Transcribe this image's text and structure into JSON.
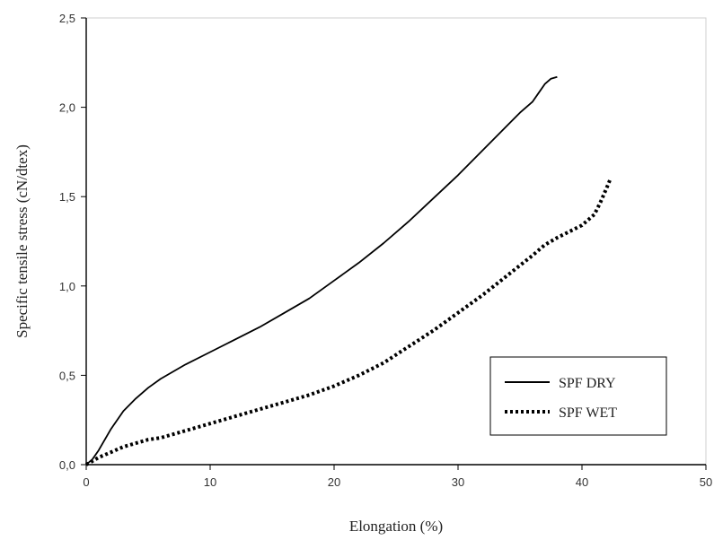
{
  "chart_data": {
    "type": "line",
    "xlabel": "Elongation (%)",
    "ylabel": "Specific tensile stress (cN/dtex)",
    "xlim": [
      0,
      50
    ],
    "ylim": [
      0,
      2.5
    ],
    "x_ticks": [
      "0",
      "10",
      "20",
      "30",
      "40",
      "50"
    ],
    "y_ticks": [
      "0,0",
      "0,5",
      "1,0",
      "1,5",
      "2,0",
      "2,5"
    ],
    "grid": false,
    "legend_position": "bottom-right",
    "series": [
      {
        "name": "SPF DRY",
        "style": "solid",
        "color": "#000000",
        "points": [
          [
            0,
            0
          ],
          [
            0.5,
            0.03
          ],
          [
            1,
            0.08
          ],
          [
            2,
            0.2
          ],
          [
            3,
            0.3
          ],
          [
            4,
            0.37
          ],
          [
            5,
            0.43
          ],
          [
            6,
            0.48
          ],
          [
            8,
            0.56
          ],
          [
            10,
            0.63
          ],
          [
            12,
            0.7
          ],
          [
            14,
            0.77
          ],
          [
            16,
            0.85
          ],
          [
            18,
            0.93
          ],
          [
            20,
            1.03
          ],
          [
            22,
            1.13
          ],
          [
            24,
            1.24
          ],
          [
            26,
            1.36
          ],
          [
            28,
            1.49
          ],
          [
            30,
            1.62
          ],
          [
            32,
            1.76
          ],
          [
            34,
            1.9
          ],
          [
            35,
            1.97
          ],
          [
            36,
            2.03
          ],
          [
            36.5,
            2.08
          ],
          [
            37,
            2.13
          ],
          [
            37.5,
            2.16
          ],
          [
            38,
            2.17
          ]
        ]
      },
      {
        "name": "SPF WET",
        "style": "dotted",
        "color": "#000000",
        "points": [
          [
            0,
            0
          ],
          [
            1,
            0.04
          ],
          [
            2,
            0.07
          ],
          [
            3,
            0.1
          ],
          [
            4,
            0.12
          ],
          [
            5,
            0.14
          ],
          [
            6,
            0.15
          ],
          [
            8,
            0.19
          ],
          [
            10,
            0.23
          ],
          [
            12,
            0.27
          ],
          [
            14,
            0.31
          ],
          [
            16,
            0.35
          ],
          [
            18,
            0.39
          ],
          [
            20,
            0.44
          ],
          [
            22,
            0.5
          ],
          [
            24,
            0.57
          ],
          [
            26,
            0.66
          ],
          [
            28,
            0.75
          ],
          [
            30,
            0.85
          ],
          [
            32,
            0.95
          ],
          [
            34,
            1.06
          ],
          [
            36,
            1.17
          ],
          [
            37,
            1.23
          ],
          [
            38,
            1.27
          ],
          [
            40,
            1.34
          ],
          [
            41,
            1.4
          ],
          [
            41.5,
            1.47
          ],
          [
            42,
            1.55
          ],
          [
            42.3,
            1.6
          ]
        ]
      }
    ]
  }
}
